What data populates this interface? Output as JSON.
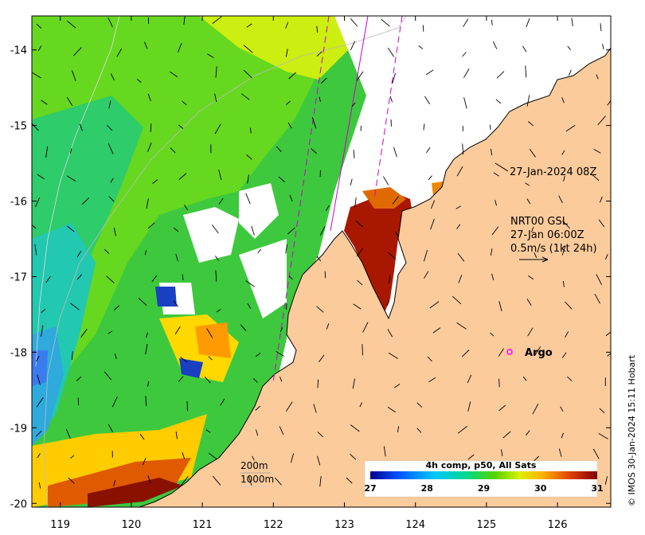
{
  "map": {
    "lon_ticks": [
      119,
      120,
      121,
      122,
      123,
      124,
      125,
      126
    ],
    "lat_ticks": [
      -14,
      -15,
      -16,
      -17,
      -18,
      -19,
      -20
    ],
    "lon_range": [
      118.6,
      126.75
    ],
    "lat_range": [
      -20.05,
      -13.55
    ]
  },
  "annotations": {
    "pass_time": "27-Jan-2024 08Z",
    "current_line1": "NRT00 GSL",
    "current_line2": "27-Jan 06:00Z",
    "current_line3": "0.5m/s (1kt 24h)",
    "argo_label": "Argo",
    "contour_200": "200m",
    "contour_1000": "1000m",
    "credit": "© IMOS 30-Jan-2024 15:11 Hobart"
  },
  "colorbar": {
    "title": "4h comp, p50, All Sats",
    "ticks": [
      "27",
      "28",
      "29",
      "30",
      "31"
    ],
    "colors": [
      "#000080",
      "#0050ff",
      "#00c8ff",
      "#00e08a",
      "#32cd32",
      "#aaee00",
      "#ffee00",
      "#ff9900",
      "#cc3300",
      "#800000"
    ]
  },
  "colors": {
    "land": "#fccb9b",
    "track": "#cc00cc",
    "argo": "#ff00ff"
  }
}
